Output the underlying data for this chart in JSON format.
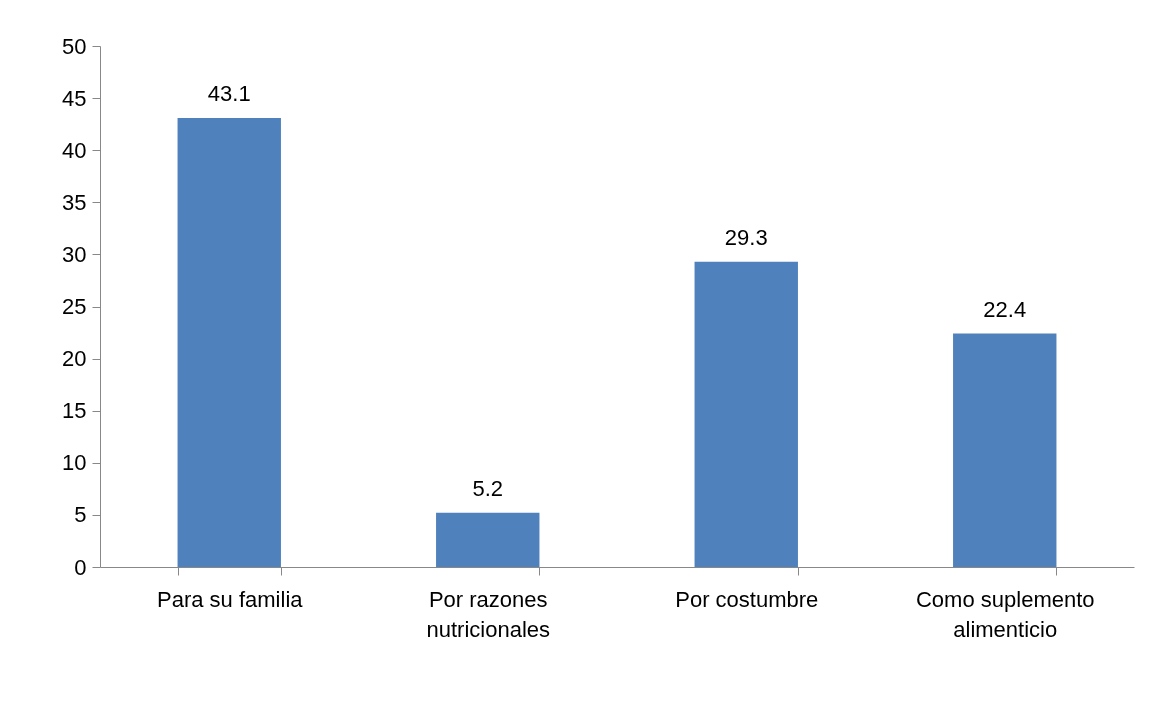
{
  "chart_data": {
    "type": "bar",
    "categories": [
      "Para su familia",
      "Por razones\nnutricionales",
      "Por costumbre",
      "Como suplemento\nalimenticio"
    ],
    "values": [
      43.1,
      5.2,
      29.3,
      22.4
    ],
    "color": "#4f81bd",
    "ylim": [
      0,
      50
    ],
    "yticks": [
      0,
      5,
      10,
      15,
      20,
      25,
      30,
      35,
      40,
      45,
      50
    ],
    "grid": false,
    "data_labels": true
  }
}
